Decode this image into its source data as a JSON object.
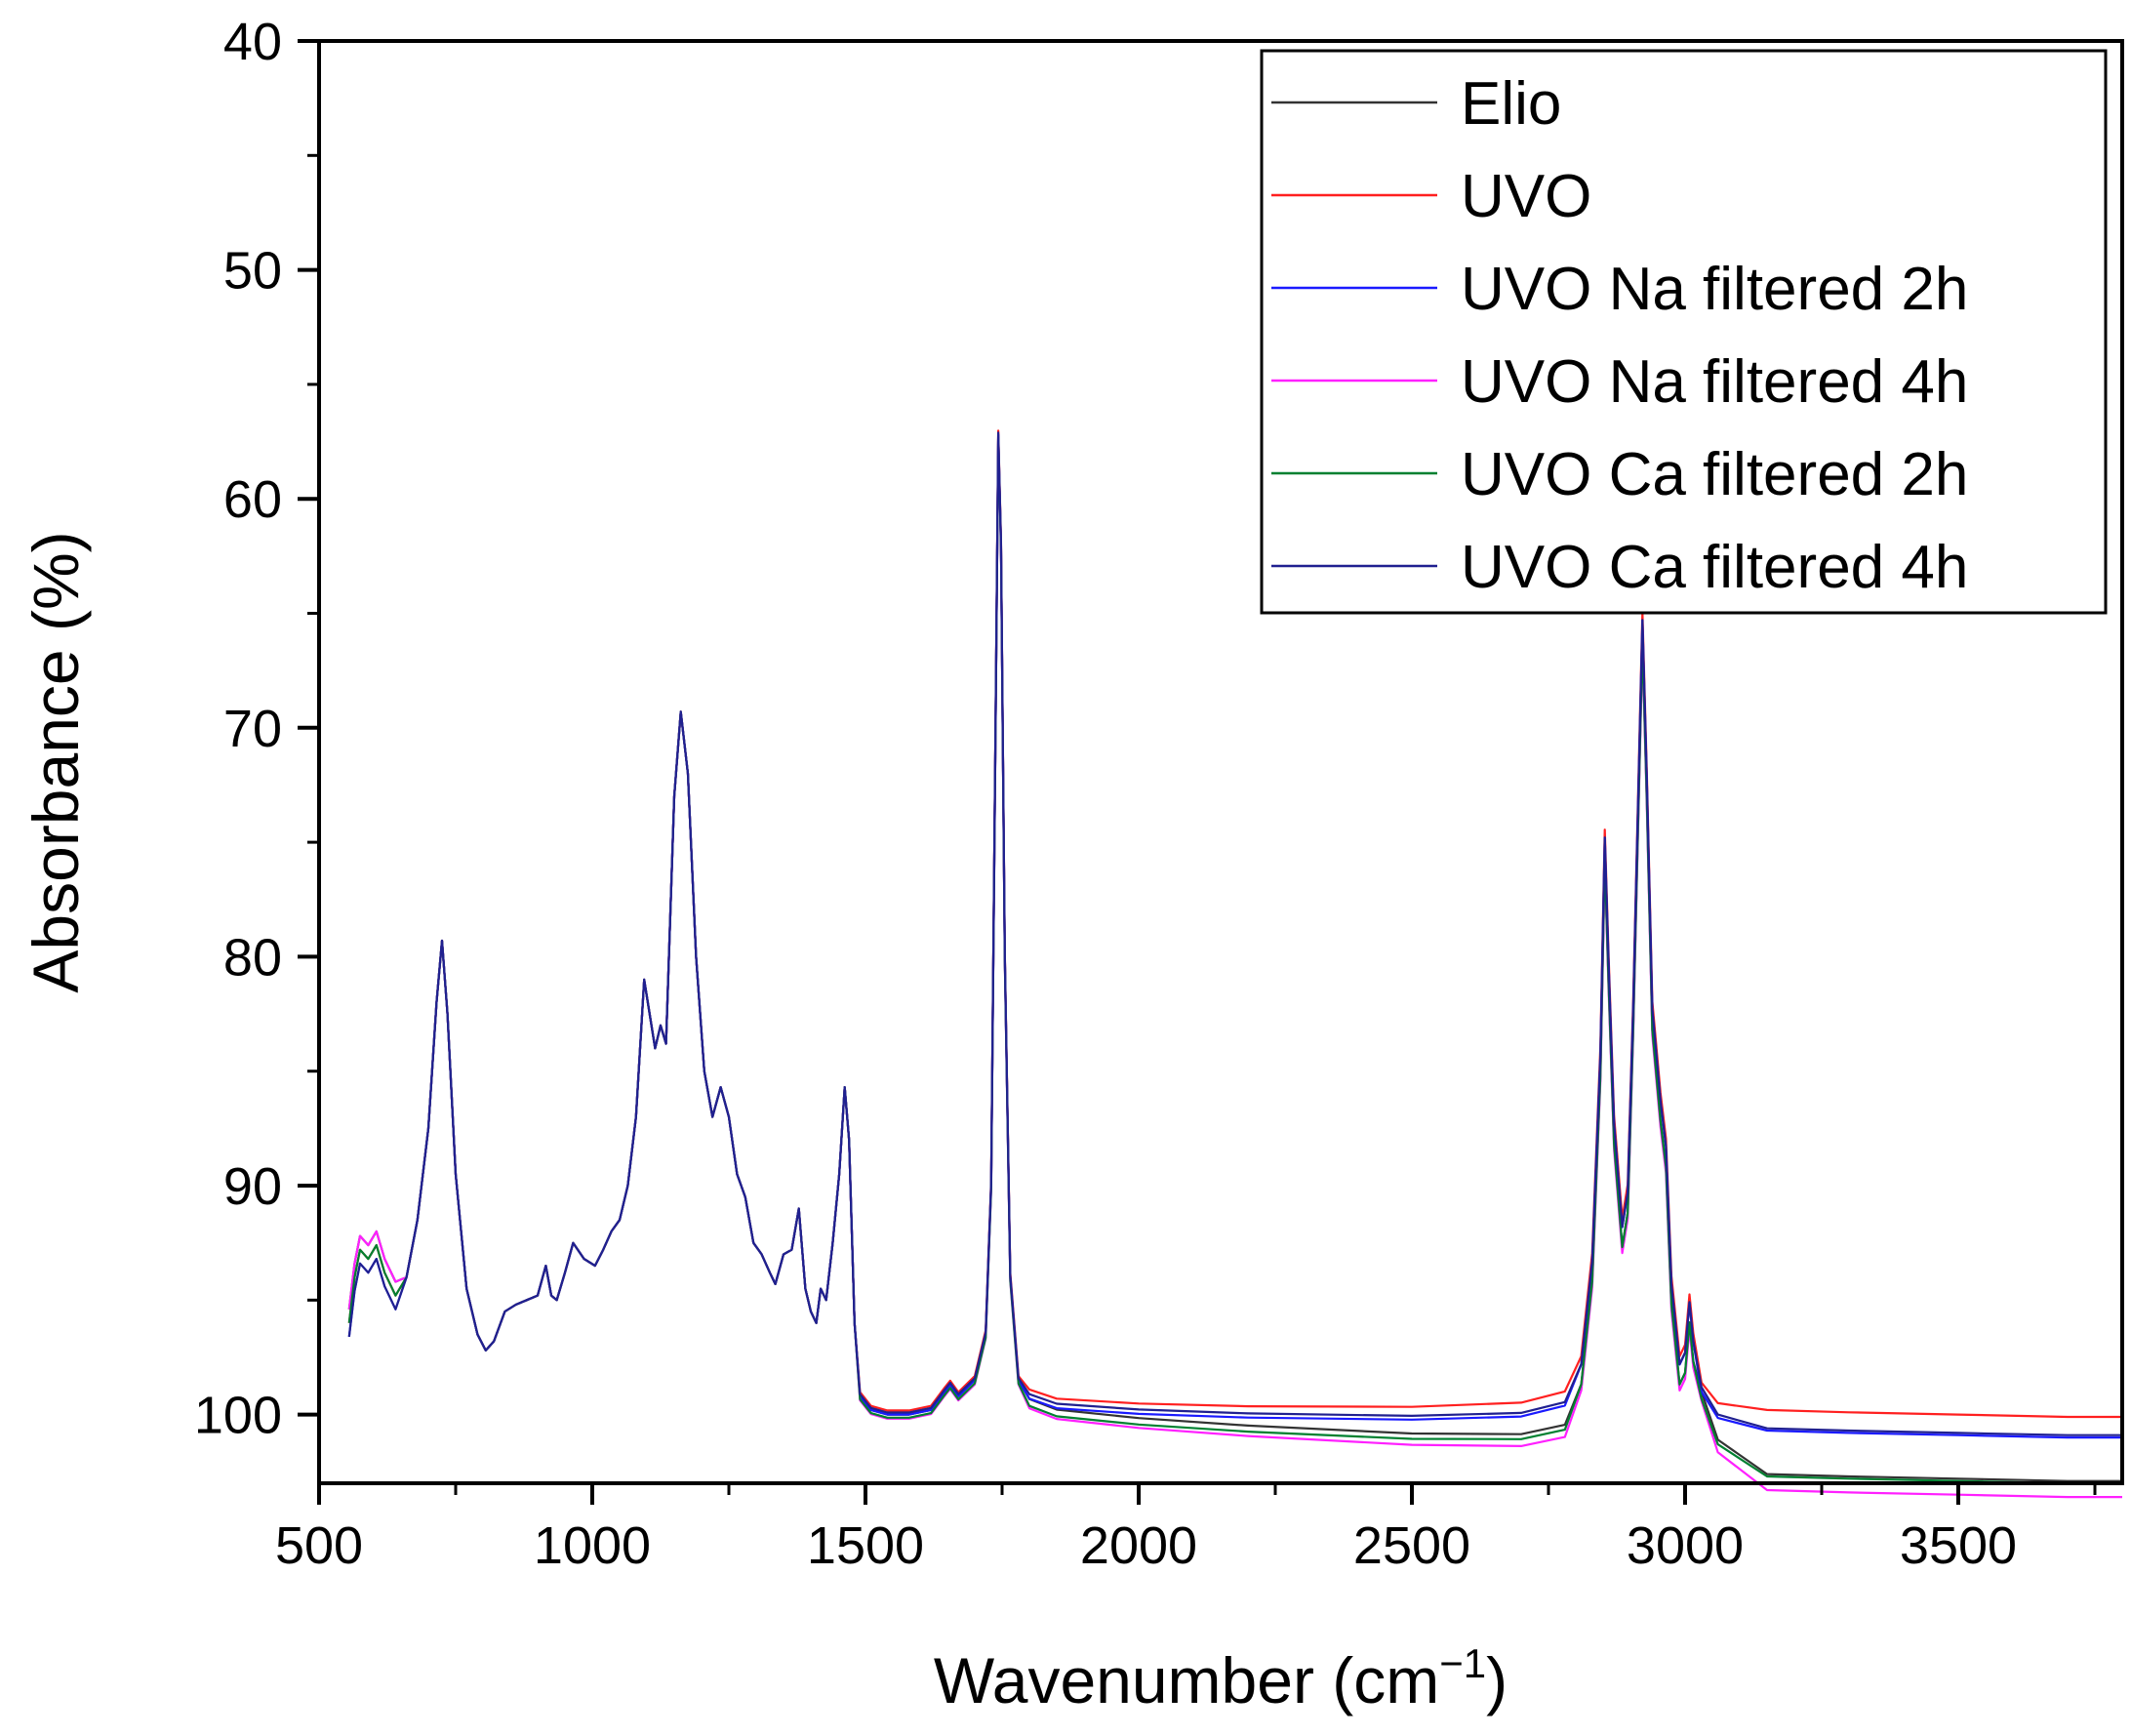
{
  "chart_data": {
    "type": "line",
    "title": "",
    "xlabel": "Wavenumber (cm",
    "xlabel_sup": "−1",
    "xlabel_close": ")",
    "ylabel": "Absorbance (%)",
    "xlim": [
      500,
      3800
    ],
    "ylim": [
      103,
      40
    ],
    "y_inverted": true,
    "grid": false,
    "legend_position": "top-right",
    "x_ticks": [
      500,
      1000,
      1500,
      2000,
      2500,
      3000,
      3500
    ],
    "x_tick_labels": [
      "500",
      "1000",
      "1500",
      "2000",
      "2500",
      "3000",
      "3500"
    ],
    "y_ticks": [
      40,
      50,
      60,
      70,
      80,
      90,
      100
    ],
    "y_tick_labels": [
      "40",
      "50",
      "60",
      "70",
      "80",
      "90",
      "100"
    ],
    "series": [
      {
        "name": "Elio",
        "color": "#333333",
        "baseline_offset": 0.0,
        "tail_offset": 2.6
      },
      {
        "name": "UVO",
        "color": "#ff2020",
        "baseline_offset": -0.4,
        "tail_offset": 0.2
      },
      {
        "name": "UVO Na filtered 2h",
        "color": "#1a1aff",
        "baseline_offset": 0.0,
        "tail_offset": 0.7
      },
      {
        "name": "UVO Na filtered 4h",
        "color": "#ff20ff",
        "baseline_offset": 0.4,
        "tail_offset": 2.9
      },
      {
        "name": "UVO Ca filtered 2h",
        "color": "#008030",
        "baseline_offset": 0.3,
        "tail_offset": 2.4
      },
      {
        "name": "UVO Ca filtered 4h",
        "color": "#202090",
        "baseline_offset": -0.2,
        "tail_offset": 0.8
      }
    ],
    "spectrum_points": [
      [
        555,
        96.0
      ],
      [
        565,
        94.0
      ],
      [
        575,
        92.8
      ],
      [
        590,
        93.2
      ],
      [
        605,
        92.6
      ],
      [
        620,
        93.8
      ],
      [
        640,
        94.8
      ],
      [
        660,
        94.0
      ],
      [
        680,
        91.5
      ],
      [
        700,
        87.5
      ],
      [
        715,
        82.0
      ],
      [
        725,
        79.3
      ],
      [
        735,
        82.5
      ],
      [
        750,
        89.5
      ],
      [
        770,
        94.5
      ],
      [
        790,
        96.5
      ],
      [
        805,
        97.2
      ],
      [
        820,
        96.8
      ],
      [
        840,
        95.5
      ],
      [
        860,
        95.2
      ],
      [
        880,
        95.0
      ],
      [
        900,
        94.8
      ],
      [
        915,
        93.5
      ],
      [
        925,
        94.8
      ],
      [
        935,
        95.0
      ],
      [
        950,
        93.8
      ],
      [
        965,
        92.5
      ],
      [
        985,
        93.2
      ],
      [
        1005,
        93.5
      ],
      [
        1020,
        92.8
      ],
      [
        1035,
        92.0
      ],
      [
        1050,
        91.5
      ],
      [
        1065,
        90.0
      ],
      [
        1080,
        87.0
      ],
      [
        1095,
        81.0
      ],
      [
        1105,
        82.5
      ],
      [
        1115,
        84.0
      ],
      [
        1125,
        83.0
      ],
      [
        1135,
        83.8
      ],
      [
        1150,
        73.0
      ],
      [
        1162,
        69.3
      ],
      [
        1175,
        72.0
      ],
      [
        1190,
        80.0
      ],
      [
        1205,
        85.0
      ],
      [
        1220,
        87.0
      ],
      [
        1235,
        85.7
      ],
      [
        1250,
        87.0
      ],
      [
        1265,
        89.5
      ],
      [
        1280,
        90.5
      ],
      [
        1295,
        92.5
      ],
      [
        1310,
        93.0
      ],
      [
        1325,
        93.8
      ],
      [
        1335,
        94.3
      ],
      [
        1350,
        93.0
      ],
      [
        1365,
        92.8
      ],
      [
        1378,
        91.0
      ],
      [
        1390,
        94.5
      ],
      [
        1400,
        95.5
      ],
      [
        1410,
        96.0
      ],
      [
        1418,
        94.5
      ],
      [
        1428,
        95.0
      ],
      [
        1440,
        92.5
      ],
      [
        1452,
        89.5
      ],
      [
        1462,
        85.7
      ],
      [
        1470,
        88.0
      ],
      [
        1480,
        96.0
      ],
      [
        1490,
        99.2
      ],
      [
        1510,
        99.8
      ],
      [
        1540,
        100.0
      ],
      [
        1580,
        100.0
      ],
      [
        1620,
        99.8
      ],
      [
        1645,
        99.0
      ],
      [
        1655,
        98.7
      ],
      [
        1670,
        99.2
      ],
      [
        1700,
        98.5
      ],
      [
        1720,
        96.5
      ],
      [
        1730,
        90.0
      ],
      [
        1738,
        70.0
      ],
      [
        1743,
        57.2
      ],
      [
        1748,
        62.0
      ],
      [
        1755,
        80.0
      ],
      [
        1765,
        94.0
      ],
      [
        1780,
        98.5
      ],
      [
        1800,
        99.3
      ],
      [
        1850,
        99.7
      ],
      [
        2000,
        99.9
      ],
      [
        2200,
        100.0
      ],
      [
        2500,
        100.0
      ],
      [
        2700,
        99.8
      ],
      [
        2780,
        99.3
      ],
      [
        2810,
        97.5
      ],
      [
        2830,
        93.0
      ],
      [
        2845,
        84.0
      ],
      [
        2853,
        74.5
      ],
      [
        2860,
        80.0
      ],
      [
        2870,
        87.0
      ],
      [
        2885,
        91.5
      ],
      [
        2895,
        90.0
      ],
      [
        2905,
        82.0
      ],
      [
        2915,
        72.0
      ],
      [
        2922,
        65.0
      ],
      [
        2930,
        72.0
      ],
      [
        2940,
        82.0
      ],
      [
        2955,
        86.0
      ],
      [
        2965,
        88.0
      ],
      [
        2975,
        94.0
      ],
      [
        2990,
        97.5
      ],
      [
        3000,
        97.0
      ],
      [
        3008,
        94.8
      ],
      [
        3015,
        96.5
      ],
      [
        3030,
        99.0
      ],
      [
        3060,
        99.8
      ],
      [
        3150,
        100.0
      ],
      [
        3300,
        100.1
      ],
      [
        3500,
        100.2
      ],
      [
        3700,
        100.3
      ],
      [
        3800,
        100.3
      ]
    ]
  }
}
